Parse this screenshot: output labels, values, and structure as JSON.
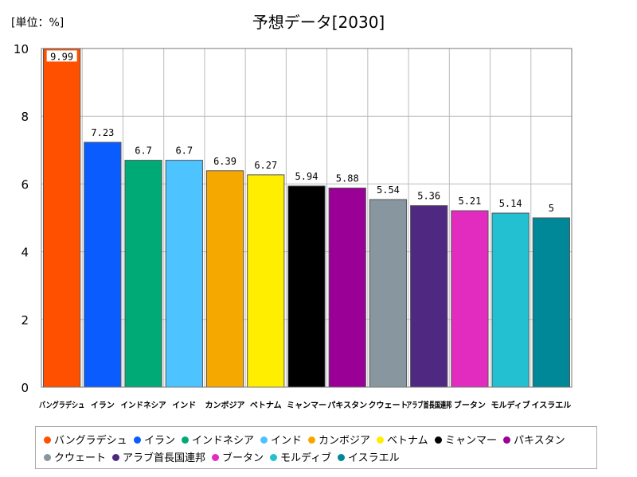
{
  "unit_label": "[単位：%]",
  "chart_data": {
    "type": "bar",
    "title": "予想データ[2030]",
    "ylim": [
      0,
      10
    ],
    "yticks": [
      0,
      2,
      4,
      6,
      8,
      10
    ],
    "grid": true,
    "legend_position": "bottom",
    "categories": [
      "バングラデシュ",
      "イラン",
      "インドネシア",
      "インド",
      "カンボジア",
      "ベトナム",
      "ミャンマー",
      "パキスタン",
      "クウェート",
      "アラブ首長国連邦",
      "ブータン",
      "モルディブ",
      "イスラエル"
    ],
    "values": [
      9.99,
      7.23,
      6.7,
      6.7,
      6.39,
      6.27,
      5.94,
      5.88,
      5.54,
      5.36,
      5.21,
      5.14,
      5
    ],
    "value_labels": [
      "9.99",
      "7.23",
      "6.7",
      "6.7",
      "6.39",
      "6.27",
      "5.94",
      "5.88",
      "5.54",
      "5.36",
      "5.21",
      "5.14",
      "5"
    ],
    "colors": [
      "#ff5000",
      "#0a5cff",
      "#00aa77",
      "#4dc3ff",
      "#f5a800",
      "#ffee00",
      "#000000",
      "#9b0096",
      "#8896a0",
      "#4f2882",
      "#e22cc0",
      "#22c0d0",
      "#008898"
    ]
  }
}
